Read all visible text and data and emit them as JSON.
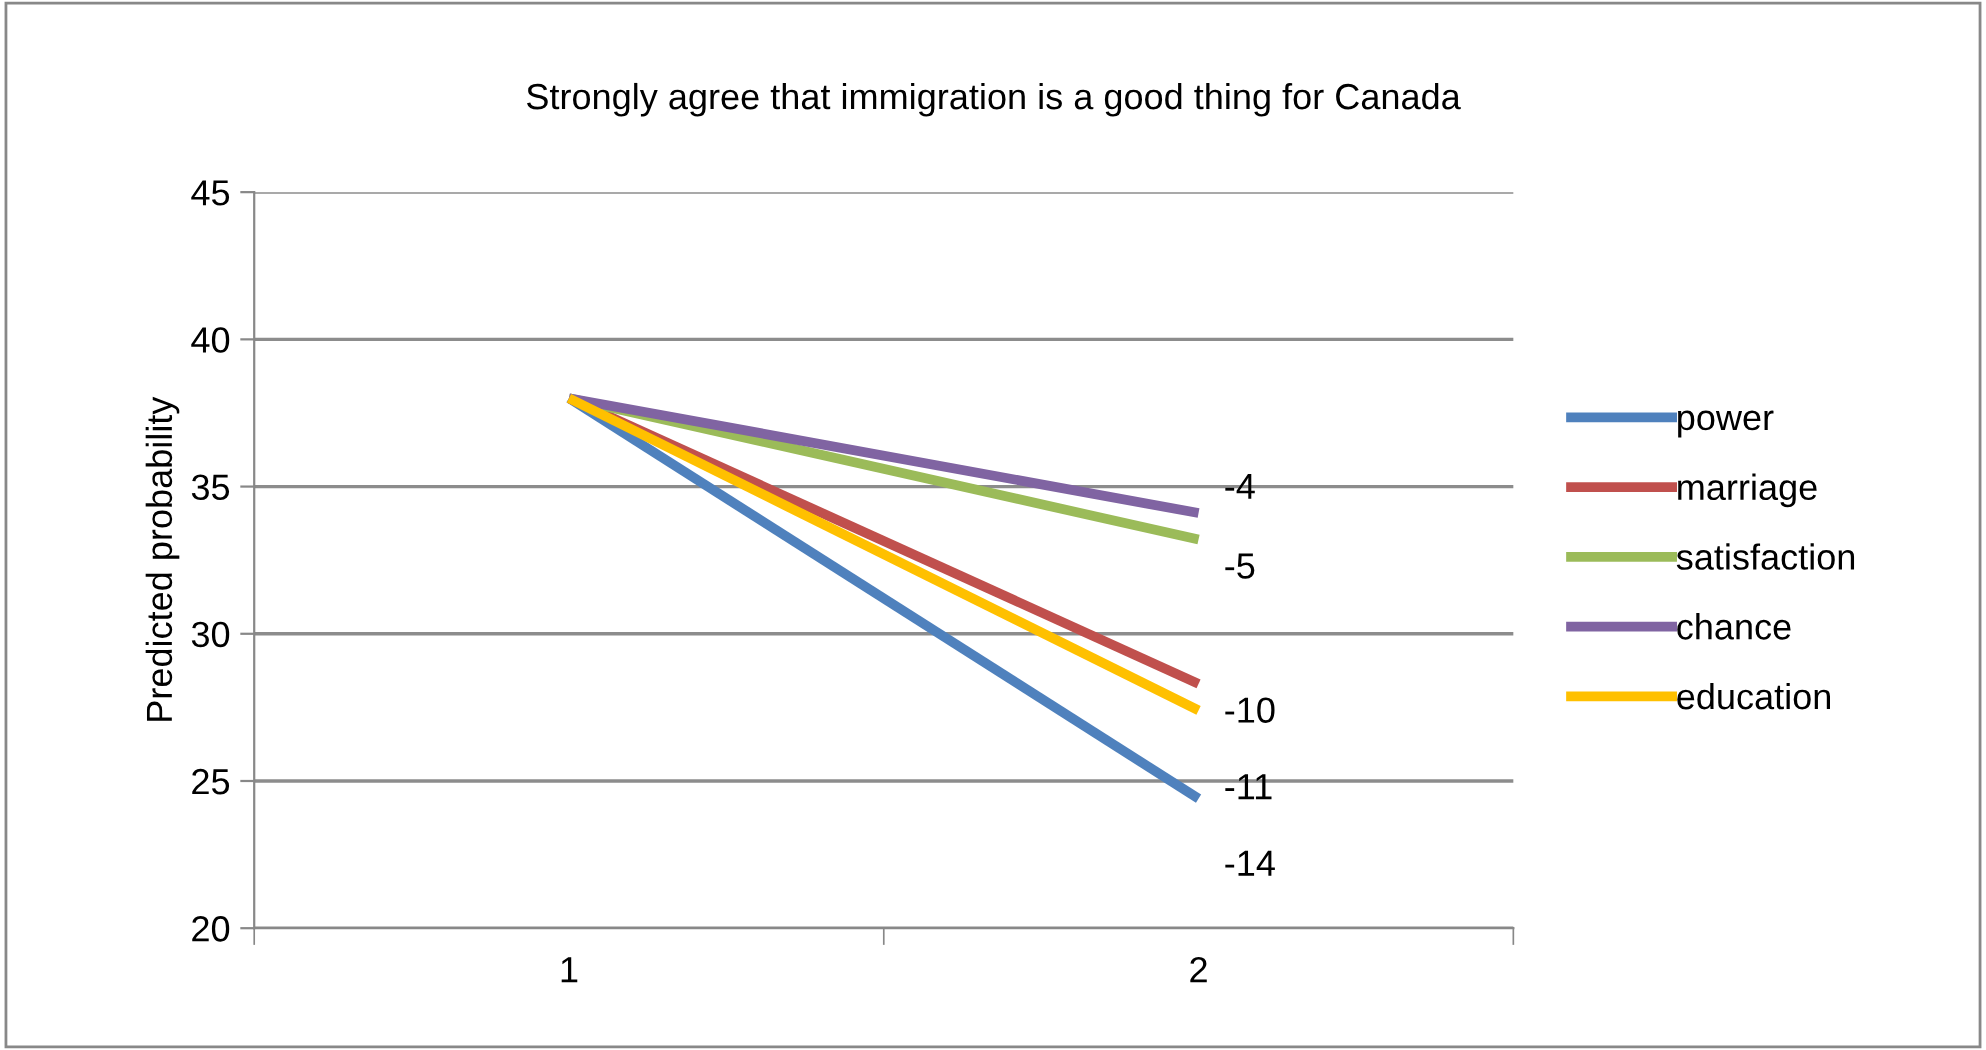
{
  "chart_data": {
    "type": "line",
    "title": "Strongly agree that immigration is a good thing for Canada",
    "ylabel": "Predicted probability",
    "categories": [
      "1",
      "2"
    ],
    "series": [
      {
        "name": "power",
        "color": "#4f81bd",
        "values": [
          38.0,
          24.4
        ]
      },
      {
        "name": "marriage",
        "color": "#c0504d",
        "values": [
          38.0,
          28.3
        ]
      },
      {
        "name": "satisfaction",
        "color": "#9bbb59",
        "values": [
          38.0,
          33.2
        ]
      },
      {
        "name": "chance",
        "color": "#8064a2",
        "values": [
          38.0,
          34.1
        ]
      },
      {
        "name": "education",
        "color": "#ffc000",
        "values": [
          38.0,
          27.4
        ]
      }
    ],
    "annotations": [
      {
        "text": "-4",
        "x": "2",
        "y": 34.1
      },
      {
        "text": "-5",
        "x": "2",
        "y": 33.2
      },
      {
        "text": "-10",
        "x": "2",
        "y": 28.3
      },
      {
        "text": "-11",
        "x": "2",
        "y": 27.4
      },
      {
        "text": "-14",
        "x": "2",
        "y": 24.4
      }
    ],
    "ylim": [
      20,
      45
    ],
    "yticks": [
      20,
      25,
      30,
      35,
      40,
      45
    ],
    "grid": "y",
    "legend": "right",
    "marker": "none",
    "line_style": "solid"
  }
}
